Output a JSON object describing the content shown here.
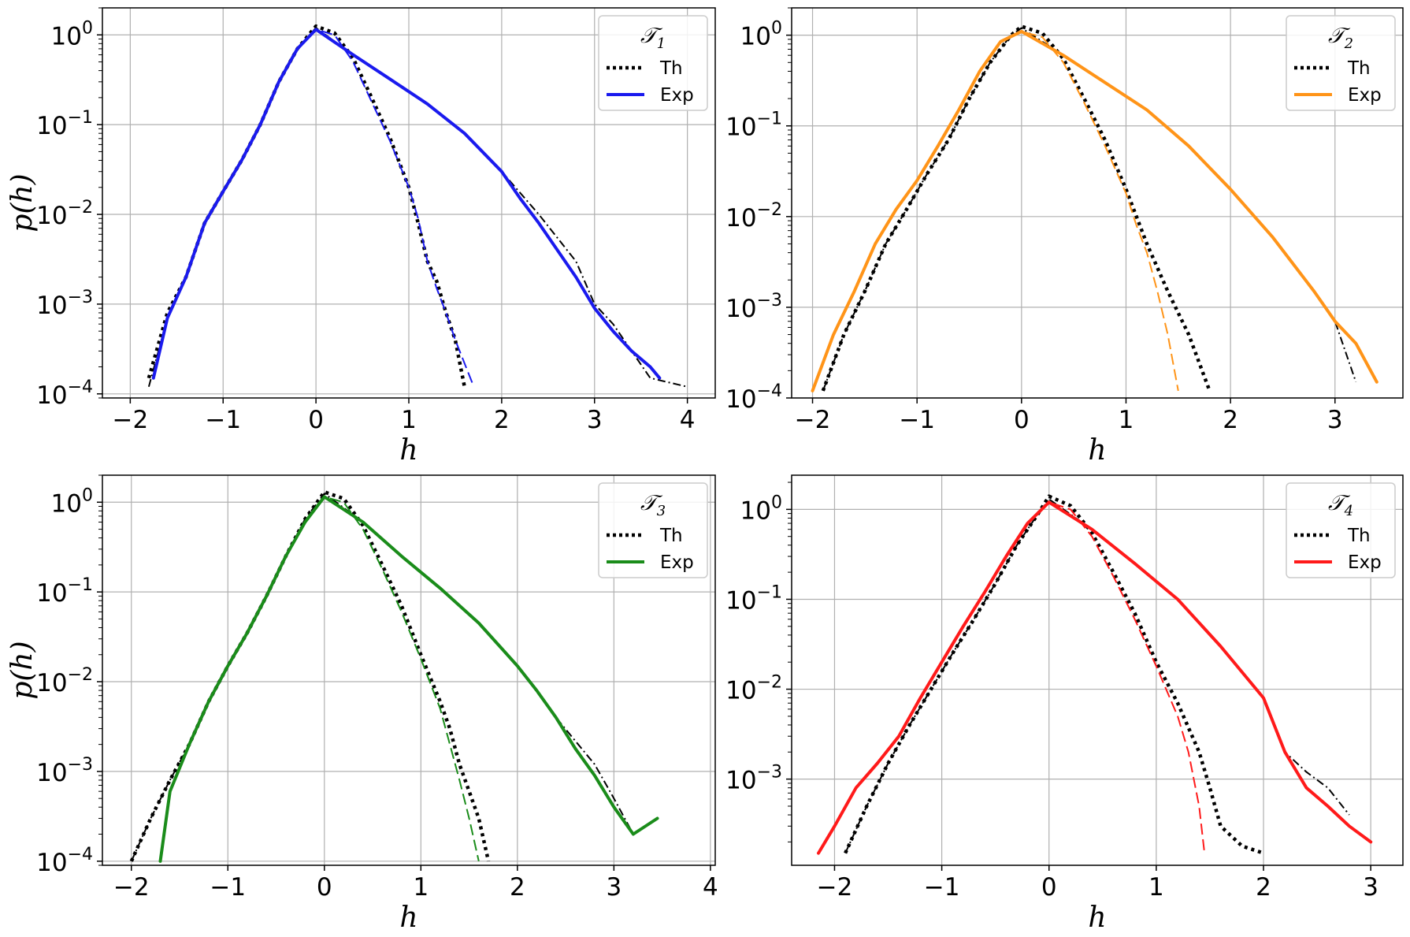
{
  "colors": {
    "theory": "#000000",
    "grid": "#b0b0b0",
    "legend_border": "#cccccc"
  },
  "chart_data": [
    {
      "type": "line",
      "panel": "top-left",
      "x_scale": "linear",
      "y_scale": "log",
      "xlim": [
        -2.3,
        4.3
      ],
      "ylim": [
        9e-05,
        2.0
      ],
      "xticks": [
        -2,
        -1,
        0,
        1,
        2,
        3,
        4
      ],
      "xtick_labels": [
        "−2",
        "−1",
        "0",
        "1",
        "2",
        "3",
        "4"
      ],
      "ytick_exponents": [
        0,
        -1,
        -2,
        -3,
        -4
      ],
      "xlabel": "h",
      "ylabel": "p(h)",
      "grid": true,
      "legend": {
        "title": "𝒯",
        "title_sub": "1",
        "placement": "top-right",
        "entries": [
          "Th",
          "Exp"
        ]
      },
      "accent": "#1a1aee",
      "series": [
        {
          "name": "Th",
          "role": "theory",
          "branch": "narrow",
          "style": "dotted",
          "x": [
            -1.8,
            -1.6,
            -1.4,
            -1.2,
            -1.0,
            -0.8,
            -0.6,
            -0.4,
            -0.2,
            0.0,
            0.2,
            0.4,
            0.6,
            0.8,
            1.0,
            1.1,
            1.2,
            1.3,
            1.4,
            1.5,
            1.6
          ],
          "y": [
            0.00015,
            0.0008,
            0.002,
            0.008,
            0.018,
            0.04,
            0.1,
            0.3,
            0.7,
            1.25,
            1.05,
            0.55,
            0.2,
            0.07,
            0.02,
            0.008,
            0.003,
            0.0018,
            0.0008,
            0.0004,
            0.00012
          ]
        },
        {
          "name": "Th",
          "role": "theory",
          "branch": "wide",
          "style": "dashdot",
          "x": [
            -1.8,
            -1.6,
            -1.4,
            -1.2,
            -1.0,
            -0.8,
            -0.6,
            -0.4,
            -0.2,
            0.0,
            0.4,
            0.8,
            1.2,
            1.6,
            2.0,
            2.4,
            2.8,
            3.0,
            3.2,
            3.4,
            3.6,
            4.0
          ],
          "y": [
            0.00012,
            0.0007,
            0.002,
            0.008,
            0.018,
            0.04,
            0.1,
            0.3,
            0.7,
            1.2,
            0.6,
            0.32,
            0.17,
            0.08,
            0.03,
            0.01,
            0.003,
            0.001,
            0.0006,
            0.0003,
            0.00015,
            0.00012
          ]
        },
        {
          "name": "Exp",
          "role": "experiment",
          "branch": "narrow",
          "style": "dashed",
          "x": [
            -1.75,
            -1.6,
            -1.4,
            -1.2,
            -1.0,
            -0.8,
            -0.6,
            -0.4,
            -0.2,
            0.0,
            0.2,
            0.4,
            0.6,
            0.8,
            1.0,
            1.1,
            1.2,
            1.3,
            1.4,
            1.5,
            1.7
          ],
          "y": [
            0.00015,
            0.0007,
            0.002,
            0.008,
            0.018,
            0.04,
            0.1,
            0.3,
            0.7,
            1.15,
            1.0,
            0.5,
            0.18,
            0.065,
            0.02,
            0.009,
            0.003,
            0.0015,
            0.0008,
            0.0004,
            0.00012
          ]
        },
        {
          "name": "Exp",
          "role": "experiment",
          "branch": "wide",
          "style": "solid",
          "x": [
            -1.75,
            -1.6,
            -1.4,
            -1.2,
            -1.0,
            -0.8,
            -0.6,
            -0.4,
            -0.2,
            0.0,
            0.4,
            0.8,
            1.2,
            1.6,
            2.0,
            2.2,
            2.4,
            2.6,
            2.8,
            3.0,
            3.2,
            3.4,
            3.6,
            3.7
          ],
          "y": [
            0.00015,
            0.0007,
            0.002,
            0.008,
            0.018,
            0.04,
            0.1,
            0.3,
            0.7,
            1.15,
            0.6,
            0.32,
            0.17,
            0.08,
            0.03,
            0.015,
            0.008,
            0.004,
            0.002,
            0.0009,
            0.0005,
            0.0003,
            0.0002,
            0.00015
          ]
        }
      ]
    },
    {
      "type": "line",
      "panel": "top-right",
      "x_scale": "linear",
      "y_scale": "log",
      "xlim": [
        -2.2,
        3.65
      ],
      "ylim": [
        0.0001,
        2.0
      ],
      "xticks": [
        -2,
        -1,
        0,
        1,
        2,
        3
      ],
      "xtick_labels": [
        "−2",
        "−1",
        "0",
        "1",
        "2",
        "3"
      ],
      "ytick_exponents": [
        0,
        -1,
        -2,
        -3,
        -4
      ],
      "xlabel": "h",
      "ylabel": "",
      "grid": true,
      "legend": {
        "title": "𝒯",
        "title_sub": "2",
        "placement": "top-right",
        "entries": [
          "Th",
          "Exp"
        ]
      },
      "accent": "#ff9418",
      "series": [
        {
          "name": "Th",
          "role": "theory",
          "branch": "narrow",
          "style": "dotted",
          "x": [
            -1.9,
            -1.7,
            -1.5,
            -1.3,
            -1.1,
            -0.9,
            -0.7,
            -0.5,
            -0.3,
            -0.1,
            0.0,
            0.2,
            0.4,
            0.6,
            0.8,
            1.0,
            1.2,
            1.4,
            1.6,
            1.8
          ],
          "y": [
            0.00012,
            0.0005,
            0.0015,
            0.005,
            0.012,
            0.03,
            0.07,
            0.2,
            0.5,
            1.0,
            1.25,
            1.05,
            0.55,
            0.2,
            0.07,
            0.02,
            0.005,
            0.0015,
            0.0005,
            0.00012
          ]
        },
        {
          "name": "Th",
          "role": "theory",
          "branch": "wide",
          "style": "dashdot",
          "x": [
            -1.9,
            -1.7,
            -1.5,
            -1.3,
            -1.1,
            -0.9,
            -0.7,
            -0.5,
            -0.3,
            -0.1,
            0.0,
            0.4,
            0.8,
            1.2,
            1.6,
            2.0,
            2.4,
            2.8,
            3.0,
            3.2
          ],
          "y": [
            0.00012,
            0.0005,
            0.0015,
            0.005,
            0.012,
            0.03,
            0.07,
            0.2,
            0.5,
            1.0,
            1.2,
            0.6,
            0.3,
            0.15,
            0.06,
            0.02,
            0.006,
            0.0015,
            0.0007,
            0.00015
          ]
        },
        {
          "name": "Exp",
          "role": "experiment",
          "branch": "narrow",
          "style": "dashed",
          "x": [
            -2.0,
            -1.8,
            -1.6,
            -1.4,
            -1.2,
            -1.0,
            -0.8,
            -0.6,
            -0.4,
            -0.2,
            0.0,
            0.2,
            0.4,
            0.6,
            0.8,
            1.0,
            1.1,
            1.2,
            1.3,
            1.4,
            1.5
          ],
          "y": [
            0.00012,
            0.0005,
            0.0015,
            0.005,
            0.012,
            0.025,
            0.06,
            0.15,
            0.4,
            0.85,
            1.1,
            0.95,
            0.5,
            0.18,
            0.06,
            0.018,
            0.008,
            0.004,
            0.0015,
            0.0005,
            0.00012
          ]
        },
        {
          "name": "Exp",
          "role": "experiment",
          "branch": "wide",
          "style": "solid",
          "x": [
            -2.0,
            -1.8,
            -1.6,
            -1.4,
            -1.2,
            -1.0,
            -0.8,
            -0.6,
            -0.4,
            -0.2,
            0.0,
            0.4,
            0.8,
            1.2,
            1.6,
            2.0,
            2.4,
            2.8,
            3.0,
            3.2,
            3.4
          ],
          "y": [
            0.00012,
            0.0005,
            0.0015,
            0.005,
            0.012,
            0.025,
            0.06,
            0.15,
            0.4,
            0.85,
            1.1,
            0.6,
            0.3,
            0.15,
            0.06,
            0.02,
            0.006,
            0.0015,
            0.0007,
            0.0004,
            0.00015
          ]
        }
      ]
    },
    {
      "type": "line",
      "panel": "bottom-left",
      "x_scale": "linear",
      "y_scale": "log",
      "xlim": [
        -2.3,
        4.05
      ],
      "ylim": [
        9e-05,
        2.0
      ],
      "xticks": [
        -2,
        -1,
        0,
        1,
        2,
        3,
        4
      ],
      "xtick_labels": [
        "−2",
        "−1",
        "0",
        "1",
        "2",
        "3",
        "4"
      ],
      "ytick_exponents": [
        0,
        -1,
        -2,
        -3,
        -4
      ],
      "xlabel": "h",
      "ylabel": "p(h)",
      "grid": true,
      "legend": {
        "title": "𝒯",
        "title_sub": "3",
        "placement": "top-right",
        "entries": [
          "Th",
          "Exp"
        ]
      },
      "accent": "#1a8c1a",
      "series": [
        {
          "name": "Th",
          "role": "theory",
          "branch": "narrow",
          "style": "dotted",
          "x": [
            -2.0,
            -1.8,
            -1.6,
            -1.4,
            -1.2,
            -1.0,
            -0.8,
            -0.6,
            -0.4,
            -0.2,
            0.0,
            0.2,
            0.4,
            0.6,
            0.8,
            1.0,
            1.2,
            1.3,
            1.4,
            1.5,
            1.6,
            1.7
          ],
          "y": [
            0.0001,
            0.0003,
            0.0008,
            0.002,
            0.006,
            0.015,
            0.035,
            0.09,
            0.25,
            0.65,
            1.3,
            1.1,
            0.55,
            0.2,
            0.07,
            0.02,
            0.006,
            0.003,
            0.0012,
            0.0006,
            0.0003,
            0.0001
          ]
        },
        {
          "name": "Th",
          "role": "theory",
          "branch": "wide",
          "style": "dashdot",
          "x": [
            -2.0,
            -1.8,
            -1.6,
            -1.4,
            -1.2,
            -1.0,
            -0.8,
            -0.6,
            -0.4,
            -0.2,
            0.0,
            0.4,
            0.8,
            1.2,
            1.6,
            2.0,
            2.4,
            2.8,
            3.0,
            3.2
          ],
          "y": [
            0.0001,
            0.0003,
            0.0008,
            0.002,
            0.006,
            0.015,
            0.035,
            0.09,
            0.25,
            0.65,
            1.25,
            0.6,
            0.25,
            0.11,
            0.045,
            0.015,
            0.004,
            0.0012,
            0.0005,
            0.0002
          ]
        },
        {
          "name": "Exp",
          "role": "experiment",
          "branch": "narrow",
          "style": "dashed",
          "x": [
            -1.7,
            -1.6,
            -1.4,
            -1.2,
            -1.0,
            -0.8,
            -0.6,
            -0.4,
            -0.2,
            0.0,
            0.2,
            0.4,
            0.6,
            0.8,
            1.0,
            1.2,
            1.3,
            1.4,
            1.5,
            1.6
          ],
          "y": [
            0.0001,
            0.0006,
            0.002,
            0.006,
            0.015,
            0.035,
            0.09,
            0.25,
            0.6,
            1.15,
            1.0,
            0.5,
            0.18,
            0.06,
            0.018,
            0.005,
            0.002,
            0.0008,
            0.0003,
            0.0001
          ]
        },
        {
          "name": "Exp",
          "role": "experiment",
          "branch": "wide",
          "style": "solid",
          "x": [
            -1.7,
            -1.6,
            -1.4,
            -1.2,
            -1.0,
            -0.8,
            -0.6,
            -0.4,
            -0.2,
            0.0,
            0.4,
            0.8,
            1.2,
            1.6,
            2.0,
            2.2,
            2.4,
            2.6,
            2.8,
            3.0,
            3.2,
            3.45
          ],
          "y": [
            0.0001,
            0.0006,
            0.002,
            0.006,
            0.015,
            0.035,
            0.09,
            0.25,
            0.6,
            1.15,
            0.6,
            0.25,
            0.11,
            0.045,
            0.015,
            0.008,
            0.004,
            0.0018,
            0.0009,
            0.0004,
            0.0002,
            0.0003
          ]
        }
      ]
    },
    {
      "type": "line",
      "panel": "bottom-right",
      "x_scale": "linear",
      "y_scale": "log",
      "xlim": [
        -2.4,
        3.3
      ],
      "ylim": [
        0.00011,
        2.4
      ],
      "xticks": [
        -2,
        -1,
        0,
        1,
        2,
        3
      ],
      "xtick_labels": [
        "−2",
        "−1",
        "0",
        "1",
        "2",
        "3"
      ],
      "ytick_exponents": [
        0,
        -1,
        -2,
        -3
      ],
      "xlabel": "h",
      "ylabel": "",
      "grid": true,
      "legend": {
        "title": "𝒯",
        "title_sub": "4",
        "placement": "top-right",
        "entries": [
          "Th",
          "Exp"
        ]
      },
      "accent": "#ff1a1a",
      "series": [
        {
          "name": "Th",
          "role": "theory",
          "branch": "narrow",
          "style": "dotted",
          "x": [
            -1.9,
            -1.7,
            -1.5,
            -1.3,
            -1.1,
            -0.9,
            -0.7,
            -0.5,
            -0.3,
            -0.1,
            0.0,
            0.2,
            0.4,
            0.6,
            0.8,
            1.0,
            1.2,
            1.4,
            1.5,
            1.6,
            1.8,
            2.0
          ],
          "y": [
            0.00015,
            0.0005,
            0.0015,
            0.004,
            0.01,
            0.025,
            0.06,
            0.15,
            0.4,
            0.9,
            1.4,
            1.1,
            0.55,
            0.2,
            0.07,
            0.02,
            0.007,
            0.002,
            0.0008,
            0.0003,
            0.00018,
            0.00015
          ]
        },
        {
          "name": "Th",
          "role": "theory",
          "branch": "wide",
          "style": "dashdot",
          "x": [
            -1.9,
            -1.7,
            -1.5,
            -1.3,
            -1.1,
            -0.9,
            -0.7,
            -0.5,
            -0.3,
            -0.1,
            0.0,
            0.4,
            0.8,
            1.2,
            1.6,
            2.0,
            2.2,
            2.4,
            2.6,
            2.8
          ],
          "y": [
            0.00015,
            0.0005,
            0.0015,
            0.004,
            0.01,
            0.025,
            0.06,
            0.15,
            0.4,
            0.9,
            1.3,
            0.6,
            0.25,
            0.1,
            0.03,
            0.008,
            0.002,
            0.0012,
            0.0008,
            0.0004
          ]
        },
        {
          "name": "Exp",
          "role": "experiment",
          "branch": "narrow",
          "style": "dashed",
          "x": [
            -2.15,
            -2.0,
            -1.8,
            -1.6,
            -1.4,
            -1.2,
            -1.0,
            -0.8,
            -0.6,
            -0.4,
            -0.2,
            0.0,
            0.2,
            0.4,
            0.6,
            0.8,
            1.0,
            1.2,
            1.3,
            1.4,
            1.45
          ],
          "y": [
            0.00015,
            0.0003,
            0.0008,
            0.0015,
            0.003,
            0.008,
            0.02,
            0.05,
            0.12,
            0.3,
            0.7,
            1.2,
            1.0,
            0.5,
            0.18,
            0.06,
            0.018,
            0.005,
            0.002,
            0.0005,
            0.00015
          ]
        },
        {
          "name": "Exp",
          "role": "experiment",
          "branch": "wide",
          "style": "solid",
          "x": [
            -2.15,
            -2.0,
            -1.8,
            -1.6,
            -1.4,
            -1.2,
            -1.0,
            -0.8,
            -0.6,
            -0.4,
            -0.2,
            0.0,
            0.4,
            0.8,
            1.2,
            1.6,
            2.0,
            2.2,
            2.4,
            2.6,
            2.8,
            3.0
          ],
          "y": [
            0.00015,
            0.0003,
            0.0008,
            0.0015,
            0.003,
            0.008,
            0.02,
            0.05,
            0.12,
            0.3,
            0.7,
            1.2,
            0.6,
            0.25,
            0.1,
            0.03,
            0.008,
            0.002,
            0.0008,
            0.0005,
            0.0003,
            0.0002
          ]
        }
      ]
    }
  ]
}
